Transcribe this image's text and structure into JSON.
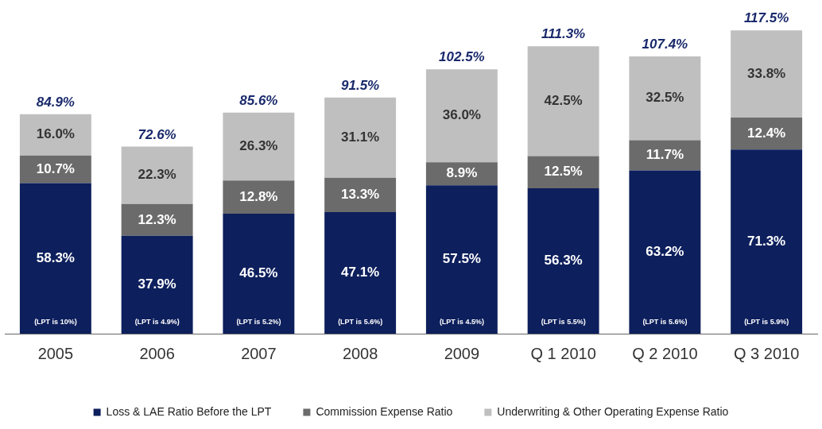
{
  "chart_data": {
    "type": "bar",
    "stacked": true,
    "categories": [
      "2005",
      "2006",
      "2007",
      "2008",
      "2009",
      "Q 1 2010",
      "Q 2 2010",
      "Q 3 2010"
    ],
    "series": [
      {
        "name": "Loss & LAE Ratio Before the LPT",
        "color": "#0d1f5c",
        "values": [
          58.3,
          37.9,
          46.5,
          47.1,
          57.5,
          56.3,
          63.2,
          71.3
        ],
        "value_labels": [
          "58.3%",
          "37.9%",
          "46.5%",
          "47.1%",
          "57.5%",
          "56.3%",
          "63.2%",
          "71.3%"
        ]
      },
      {
        "name": "Commission Expense Ratio",
        "color": "#6b6b6b",
        "values": [
          10.7,
          12.3,
          12.8,
          13.3,
          8.9,
          12.5,
          11.7,
          12.4
        ],
        "value_labels": [
          "10.7%",
          "12.3%",
          "12.8%",
          "13.3%",
          "8.9%",
          "12.5%",
          "11.7%",
          "12.4%"
        ]
      },
      {
        "name": "Underwriting & Other Operating Expense Ratio",
        "color": "#bfbfbf",
        "values": [
          16.0,
          22.3,
          26.3,
          31.1,
          36.0,
          42.5,
          32.5,
          33.8
        ],
        "value_labels": [
          "16.0%",
          "22.3%",
          "26.3%",
          "31.1%",
          "36.0%",
          "42.5%",
          "32.5%",
          "33.8%"
        ]
      }
    ],
    "totals": [
      "84.9%",
      "72.6%",
      "85.6%",
      "91.5%",
      "102.5%",
      "111.3%",
      "107.4%",
      "117.5%"
    ],
    "annotations": [
      "(LPT is 10%)",
      "(LPT is 4.9%)",
      "(LPT is 5.2%)",
      "(LPT is 5.6%)",
      "(LPT is 4.5%)",
      "(LPT is 5.5%)",
      "(LPT is 5.6%)",
      "(LPT is 5.9%)"
    ],
    "tick_labels": "x",
    "grid": false,
    "legend": "bottom"
  }
}
